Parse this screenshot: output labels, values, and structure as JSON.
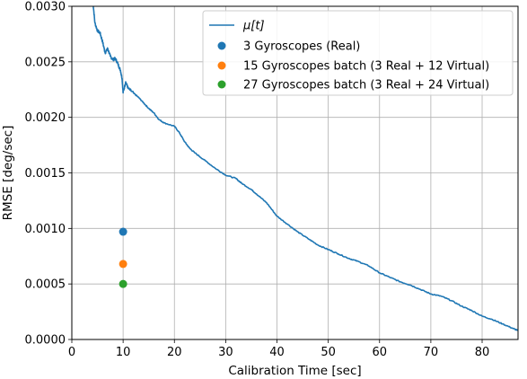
{
  "chart_data": {
    "type": "line",
    "xlabel": "Calibration Time [sec]",
    "ylabel": "RMSE [deg/sec]",
    "xlim": [
      0,
      87
    ],
    "ylim": [
      0,
      0.003
    ],
    "xticks": [
      0,
      10,
      20,
      30,
      40,
      50,
      60,
      70,
      80
    ],
    "xtick_labels": [
      "0",
      "10",
      "20",
      "30",
      "40",
      "50",
      "60",
      "70",
      "80"
    ],
    "yticks": [
      0,
      0.0005,
      0.001,
      0.0015,
      0.002,
      0.0025,
      0.003
    ],
    "ytick_labels": [
      "0.0000",
      "0.0005",
      "0.0010",
      "0.0015",
      "0.0020",
      "0.0025",
      "0.0030"
    ],
    "grid": true,
    "legend_position": "top-right",
    "series": [
      {
        "name": "μ[t]",
        "kind": "line",
        "color": "#1f77b4",
        "points": [
          [
            4.1,
            0.00305
          ],
          [
            4.5,
            0.00285
          ],
          [
            5.0,
            0.00278
          ],
          [
            5.5,
            0.00276
          ],
          [
            6.0,
            0.00268
          ],
          [
            6.5,
            0.00258
          ],
          [
            7.0,
            0.00262
          ],
          [
            7.5,
            0.00255
          ],
          [
            8.0,
            0.00252
          ],
          [
            8.5,
            0.00253
          ],
          [
            9.0,
            0.00248
          ],
          [
            9.5,
            0.00242
          ],
          [
            9.8,
            0.00235
          ],
          [
            10.0,
            0.00222
          ],
          [
            10.5,
            0.00232
          ],
          [
            11.0,
            0.00226
          ],
          [
            12.0,
            0.00222
          ],
          [
            13.0,
            0.00218
          ],
          [
            14.0,
            0.00213
          ],
          [
            15.0,
            0.00208
          ],
          [
            16.0,
            0.00204
          ],
          [
            17.0,
            0.00198
          ],
          [
            18.0,
            0.00195
          ],
          [
            20.0,
            0.00192
          ],
          [
            21.0,
            0.00186
          ],
          [
            22.0,
            0.00178
          ],
          [
            23.0,
            0.00172
          ],
          [
            24.0,
            0.00168
          ],
          [
            26.0,
            0.00161
          ],
          [
            28.0,
            0.00154
          ],
          [
            30.0,
            0.00148
          ],
          [
            32.0,
            0.00145
          ],
          [
            33.0,
            0.00141
          ],
          [
            35.0,
            0.00135
          ],
          [
            36.0,
            0.00131
          ],
          [
            38.0,
            0.00123
          ],
          [
            40.0,
            0.00111
          ],
          [
            42.0,
            0.00104
          ],
          [
            44.0,
            0.00097
          ],
          [
            46.0,
            0.00091
          ],
          [
            48.0,
            0.00085
          ],
          [
            50.0,
            0.00081
          ],
          [
            52.0,
            0.00077
          ],
          [
            54.0,
            0.00073
          ],
          [
            56.0,
            0.0007
          ],
          [
            58.0,
            0.00066
          ],
          [
            60.0,
            0.0006
          ],
          [
            62.0,
            0.00056
          ],
          [
            64.0,
            0.00052
          ],
          [
            66.0,
            0.00049
          ],
          [
            68.0,
            0.00045
          ],
          [
            70.0,
            0.00041
          ],
          [
            72.0,
            0.00039
          ],
          [
            74.0,
            0.00035
          ],
          [
            76.0,
            0.0003
          ],
          [
            78.0,
            0.00026
          ],
          [
            80.0,
            0.00021
          ],
          [
            82.0,
            0.00018
          ],
          [
            84.0,
            0.00014
          ],
          [
            86.0,
            0.0001
          ],
          [
            87.0,
            8e-05
          ]
        ]
      },
      {
        "name": "3 Gyroscopes (Real)",
        "kind": "scatter",
        "color": "#1f77b4",
        "points": [
          [
            10,
            0.00097
          ]
        ]
      },
      {
        "name": "15 Gyroscopes batch (3 Real + 12 Virtual)",
        "kind": "scatter",
        "color": "#ff7f0e",
        "points": [
          [
            10,
            0.00068
          ]
        ]
      },
      {
        "name": "27 Gyroscopes batch (3 Real + 24 Virtual)",
        "kind": "scatter",
        "color": "#2ca02c",
        "points": [
          [
            10,
            0.0005
          ]
        ]
      }
    ]
  }
}
